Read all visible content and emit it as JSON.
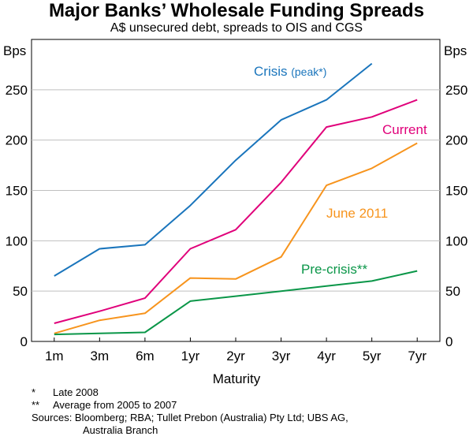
{
  "chart_data": {
    "type": "line",
    "title": "Major Banks’ Wholesale Funding Spreads",
    "subtitle": "A$ unsecured debt, spreads to OIS and CGS",
    "ylabel": "Bps",
    "xlabel": "Maturity",
    "ylim": [
      0,
      300
    ],
    "yticks": [
      0,
      50,
      100,
      150,
      200,
      250
    ],
    "categories": [
      "1m",
      "3m",
      "6m",
      "1yr",
      "2yr",
      "3yr",
      "4yr",
      "5yr",
      "7yr"
    ],
    "series": [
      {
        "name": "Crisis",
        "label": "Crisis",
        "label_suffix": "(peak*)",
        "color": "#1a75bc",
        "values": [
          65,
          92,
          96,
          135,
          180,
          220,
          240,
          276,
          null
        ]
      },
      {
        "name": "Current",
        "label": "Current",
        "color": "#e0007a",
        "values": [
          18,
          30,
          43,
          92,
          111,
          158,
          213,
          223,
          240
        ]
      },
      {
        "name": "June 2011",
        "label": "June 2011",
        "color": "#f7941d",
        "values": [
          8,
          21,
          28,
          63,
          62,
          84,
          155,
          172,
          197
        ]
      },
      {
        "name": "Pre-crisis",
        "label": "Pre-crisis**",
        "color": "#0a9648",
        "values": [
          7,
          8,
          9,
          40,
          45,
          50,
          55,
          60,
          70
        ]
      }
    ]
  },
  "notes": {
    "star_mark": "*",
    "star_text": "Late 2008",
    "dstar_mark": "**",
    "dstar_text": "Average from 2005 to 2007",
    "sources_line1": "Sources: Bloomberg; RBA; Tullet Prebon (Australia) Pty Ltd; UBS AG,",
    "sources_line2": "Australia Branch"
  }
}
